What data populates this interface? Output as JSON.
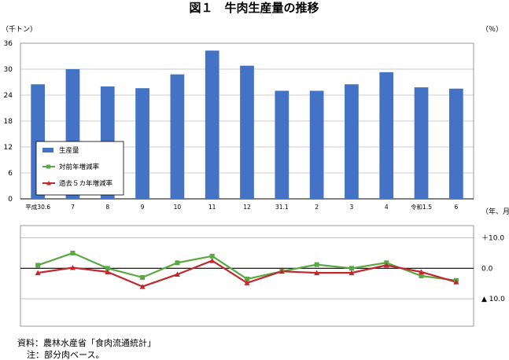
{
  "page": {
    "title": "図１　牛肉生産量の推移",
    "source_note": "資料：農林水産省「食肉流通統計」",
    "footnote": "注：部分肉ベース。"
  },
  "chart_data": [
    {
      "type": "bar",
      "categories": [
        "平成30.6",
        "7",
        "8",
        "9",
        "10",
        "11",
        "12",
        "31.1",
        "2",
        "3",
        "4",
        "令和1.5",
        "6"
      ],
      "series": [
        {
          "name": "生産量",
          "values": [
            26.5,
            30.0,
            26.0,
            25.6,
            28.8,
            34.3,
            30.8,
            25.0,
            25.0,
            26.5,
            29.3,
            25.8,
            25.5
          ]
        }
      ],
      "ylabel": "（千トン）",
      "ylim": [
        0,
        36
      ],
      "yticks": [
        "0",
        "6",
        "12",
        "18",
        "24",
        "30",
        "36"
      ],
      "xlabel": "（年、月）",
      "grid": true,
      "legend": "left-middle",
      "colors": {
        "bar": "#4472c4"
      }
    },
    {
      "type": "line",
      "categories": [
        "平成30.6",
        "7",
        "8",
        "9",
        "10",
        "11",
        "12",
        "31.1",
        "2",
        "3",
        "4",
        "令和1.5",
        "6"
      ],
      "series": [
        {
          "name": "対前年増減率",
          "values": [
            1.0,
            5.0,
            0.0,
            -3.0,
            1.8,
            4.0,
            -3.5,
            -1.0,
            1.2,
            0.0,
            1.8,
            -2.5,
            -4.0
          ]
        },
        {
          "name": "過去５カ年増減率",
          "values": [
            -1.5,
            0.2,
            -1.2,
            -6.0,
            -2.0,
            2.5,
            -4.8,
            -1.0,
            -1.5,
            -1.5,
            1.0,
            -1.2,
            -4.5
          ]
        }
      ],
      "ylabel": "（％）",
      "ylim": [
        -19,
        14
      ],
      "yticks": [
        "＋10.0",
        "0.0",
        "▲ 10.0"
      ],
      "grid": true,
      "colors": {
        "yoy": "#5aa845",
        "five_year": "#c0282e"
      }
    }
  ]
}
